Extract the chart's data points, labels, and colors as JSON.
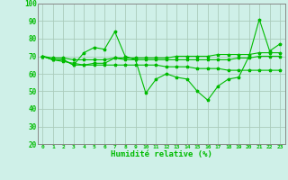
{
  "xlabel": "Humidité relative (%)",
  "ylabel": "",
  "background_color": "#cff0e8",
  "grid_color": "#aaccbb",
  "line_color": "#00bb00",
  "xlim": [
    -0.5,
    23.5
  ],
  "ylim": [
    20,
    100
  ],
  "yticks": [
    20,
    30,
    40,
    50,
    60,
    70,
    80,
    90,
    100
  ],
  "xticks": [
    0,
    1,
    2,
    3,
    4,
    5,
    6,
    7,
    8,
    9,
    10,
    11,
    12,
    13,
    14,
    15,
    16,
    17,
    18,
    19,
    20,
    21,
    22,
    23
  ],
  "xtick_labels": [
    "0",
    "1",
    "2",
    "3",
    "4",
    "5",
    "6",
    "7",
    "8",
    "9",
    "10",
    "11",
    "12",
    "13",
    "14",
    "15",
    "16",
    "17",
    "18",
    "19",
    "20",
    "21",
    "22",
    "23"
  ],
  "series": [
    [
      70,
      68,
      68,
      65,
      72,
      75,
      74,
      84,
      70,
      68,
      49,
      57,
      60,
      58,
      57,
      50,
      45,
      53,
      57,
      58,
      70,
      91,
      73,
      77
    ],
    [
      70,
      68,
      68,
      65,
      65,
      66,
      66,
      69,
      68,
      68,
      68,
      68,
      68,
      68,
      68,
      68,
      68,
      68,
      68,
      69,
      69,
      70,
      70,
      70
    ],
    [
      70,
      69,
      69,
      68,
      68,
      68,
      68,
      69,
      69,
      69,
      69,
      69,
      69,
      70,
      70,
      70,
      70,
      71,
      71,
      71,
      71,
      72,
      72,
      72
    ],
    [
      70,
      68,
      67,
      66,
      65,
      65,
      65,
      65,
      65,
      65,
      65,
      65,
      64,
      64,
      64,
      63,
      63,
      63,
      62,
      62,
      62,
      62,
      62,
      62
    ]
  ]
}
